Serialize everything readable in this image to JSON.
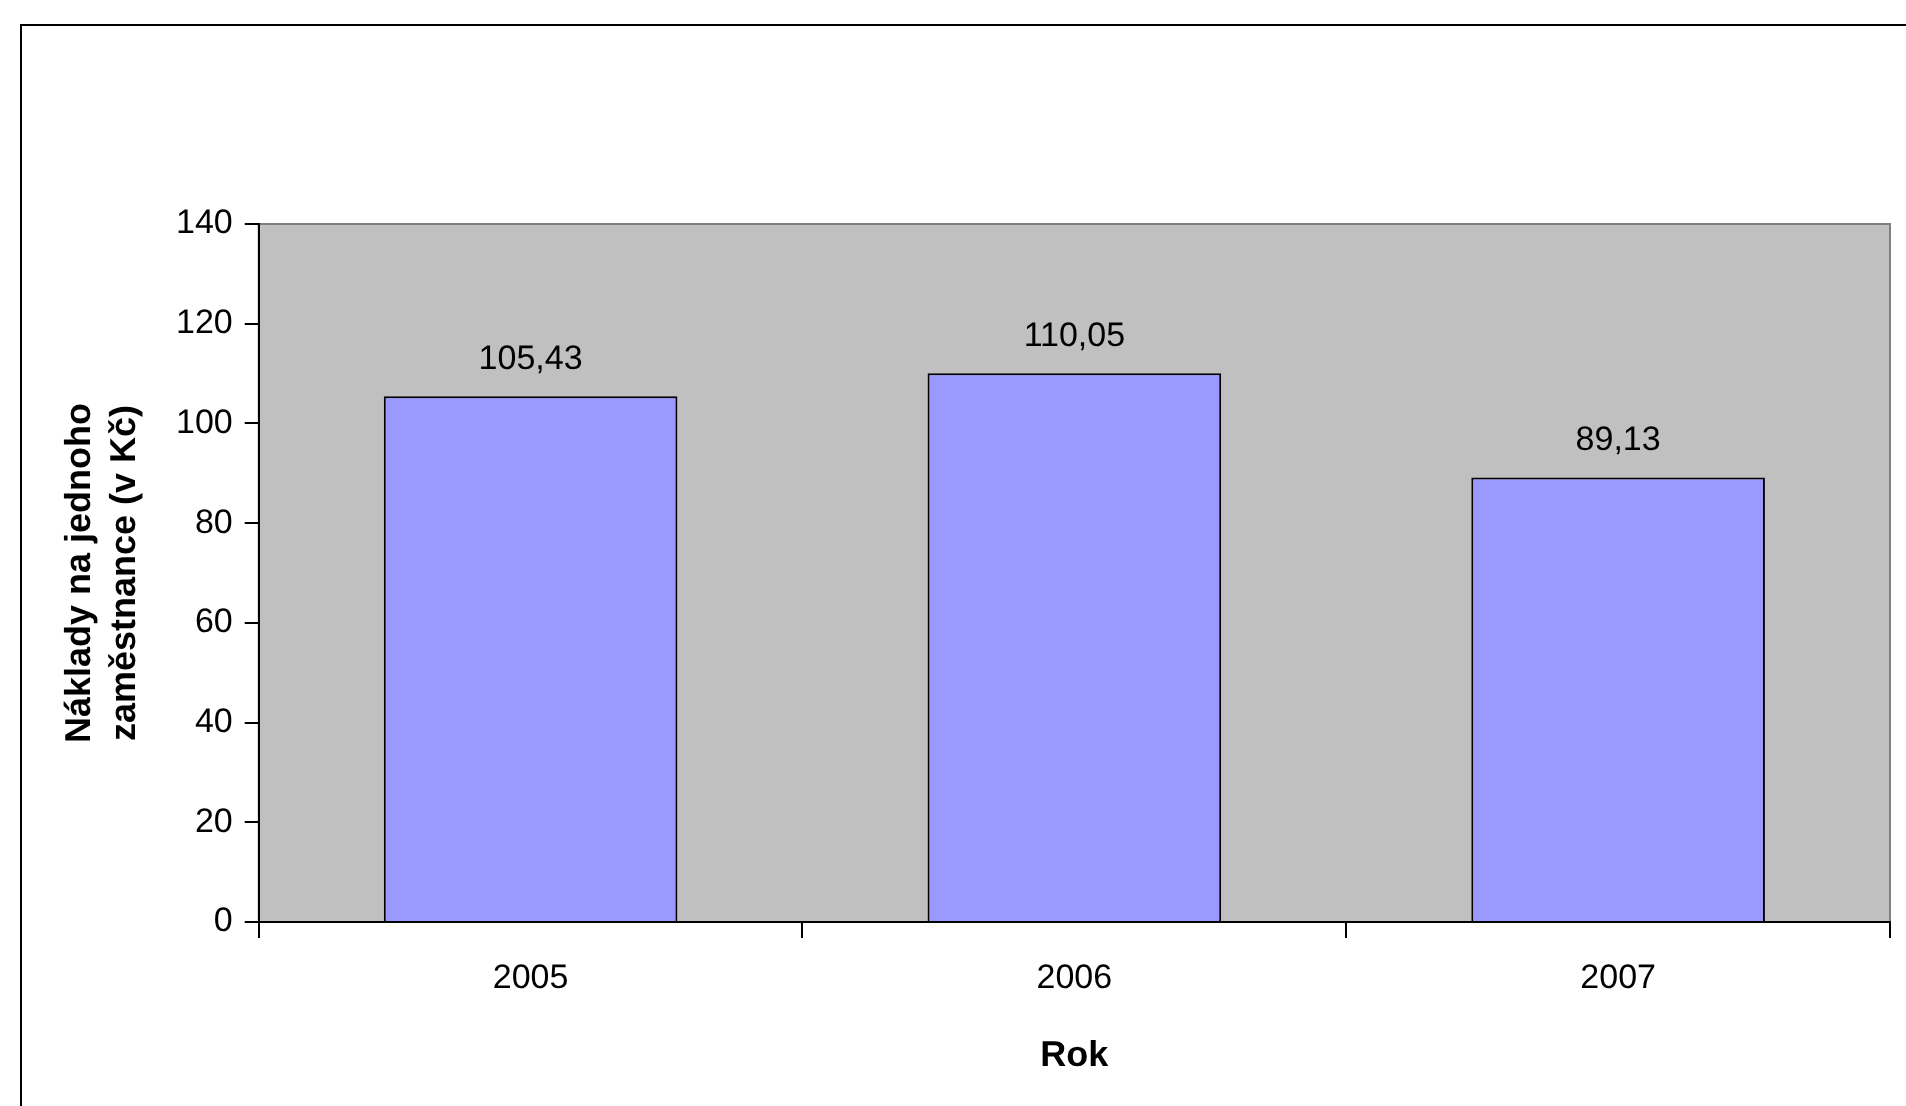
{
  "chart_data": {
    "type": "bar",
    "xlabel": "Rok",
    "ylabel": "Náklady na jednoho zaměstnance (v Kč)",
    "categories": [
      "2005",
      "2006",
      "2007"
    ],
    "values": [
      105.43,
      110.05,
      89.13
    ],
    "value_labels": [
      "105,43",
      "110,05",
      "89,13"
    ],
    "color": "#9999ff",
    "ylim": [
      0,
      140
    ],
    "yticks": [
      0,
      20,
      40,
      60,
      80,
      100,
      120,
      140
    ],
    "grid": false,
    "legend": false
  }
}
